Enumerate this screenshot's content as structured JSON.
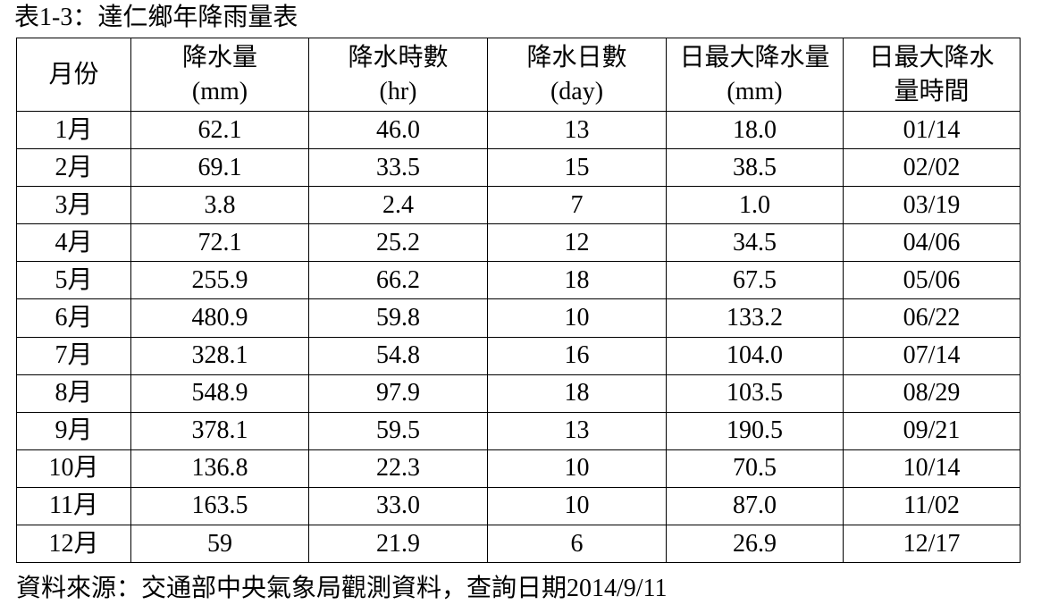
{
  "title": "表1-3：達仁鄉年降雨量表",
  "table": {
    "header": [
      [
        "月份"
      ],
      [
        "降水量",
        "(mm)"
      ],
      [
        "降水時數",
        "(hr)"
      ],
      [
        "降水日數",
        "(day)"
      ],
      [
        "日最大降水量",
        "(mm)"
      ],
      [
        "日最大降水",
        "量時間"
      ]
    ],
    "rows": [
      [
        "1月",
        "62.1",
        "46.0",
        "13",
        "18.0",
        "01/14"
      ],
      [
        "2月",
        "69.1",
        "33.5",
        "15",
        "38.5",
        "02/02"
      ],
      [
        "3月",
        "3.8",
        "2.4",
        "7",
        "1.0",
        "03/19"
      ],
      [
        "4月",
        "72.1",
        "25.2",
        "12",
        "34.5",
        "04/06"
      ],
      [
        "5月",
        "255.9",
        "66.2",
        "18",
        "67.5",
        "05/06"
      ],
      [
        "6月",
        "480.9",
        "59.8",
        "10",
        "133.2",
        "06/22"
      ],
      [
        "7月",
        "328.1",
        "54.8",
        "16",
        "104.0",
        "07/14"
      ],
      [
        "8月",
        "548.9",
        "97.9",
        "18",
        "103.5",
        "08/29"
      ],
      [
        "9月",
        "378.1",
        "59.5",
        "13",
        "190.5",
        "09/21"
      ],
      [
        "10月",
        "136.8",
        "22.3",
        "10",
        "70.5",
        "10/14"
      ],
      [
        "11月",
        "163.5",
        "33.0",
        "10",
        "87.0",
        "11/02"
      ],
      [
        "12月",
        "59",
        "21.9",
        "6",
        "26.9",
        "12/17"
      ]
    ]
  },
  "source": "資料來源：交通部中央氣象局觀測資料，查詢日期2014/9/11"
}
